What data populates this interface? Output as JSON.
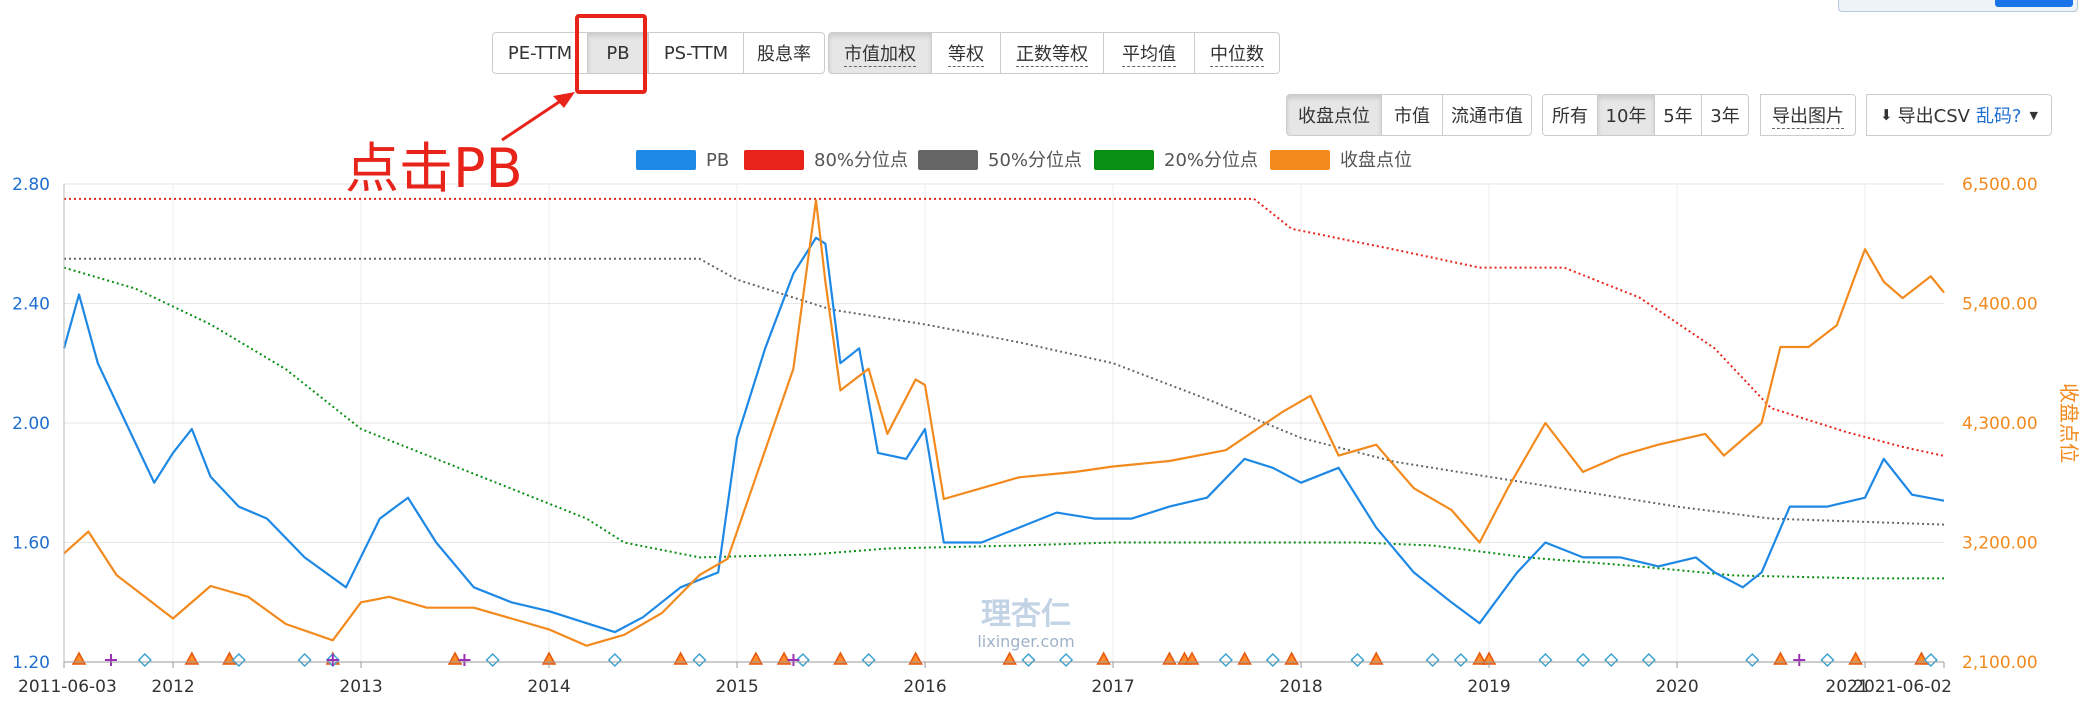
{
  "toolbar": {
    "metric_buttons": [
      {
        "label": "PE-TTM",
        "active": false
      },
      {
        "label": "PB",
        "active": true
      },
      {
        "label": "PS-TTM",
        "active": false
      },
      {
        "label": "股息率",
        "active": false
      }
    ],
    "weight_buttons": [
      {
        "label": "市值加权",
        "active": true
      },
      {
        "label": "等权",
        "active": false
      },
      {
        "label": "正数等权",
        "active": false
      },
      {
        "label": "平均值",
        "active": false
      },
      {
        "label": "中位数",
        "active": false
      }
    ],
    "overlay_buttons": [
      {
        "label": "收盘点位",
        "active": true
      },
      {
        "label": "市值",
        "active": false
      },
      {
        "label": "流通市值",
        "active": false
      }
    ],
    "range_buttons": [
      {
        "label": "所有",
        "active": false
      },
      {
        "label": "10年",
        "active": true
      },
      {
        "label": "5年",
        "active": false
      },
      {
        "label": "3年",
        "active": false
      }
    ],
    "export_image_label": "导出图片",
    "export_csv_label": "导出CSV",
    "garbled_link_label": "乱码?"
  },
  "annotation": {
    "text": "点击PB",
    "color": "#e8231a"
  },
  "watermark": {
    "line1": "理杏仁",
    "line2": "lixinger.com"
  },
  "chart_data": {
    "type": "line",
    "x_start": "2011-06-03",
    "x_end": "2021-06-02",
    "x_tick_labels": [
      "2011-06-03",
      "2012",
      "2013",
      "2014",
      "2015",
      "2016",
      "2017",
      "2018",
      "2019",
      "2020",
      "2021",
      "2021-06-02"
    ],
    "y_left": {
      "ticks": [
        "1.20",
        "1.60",
        "2.00",
        "2.40",
        "2.80"
      ],
      "range": [
        1.2,
        2.8
      ]
    },
    "y_right": {
      "ticks": [
        "2,100.00",
        "3,200.00",
        "4,300.00",
        "5,400.00",
        "6,500.00"
      ],
      "range": [
        2100,
        6500
      ],
      "label": "收盘点位"
    },
    "grid": true,
    "legend_position": "top",
    "series": [
      {
        "name": "PB",
        "axis": "left",
        "color": "#1e88e5",
        "style": "solid",
        "x": [
          2011.42,
          2011.5,
          2011.6,
          2011.75,
          2011.9,
          2012.0,
          2012.1,
          2012.2,
          2012.35,
          2012.5,
          2012.7,
          2012.92,
          2013.1,
          2013.25,
          2013.4,
          2013.6,
          2013.8,
          2014.0,
          2014.2,
          2014.35,
          2014.5,
          2014.7,
          2014.9,
          2015.0,
          2015.15,
          2015.3,
          2015.42,
          2015.47,
          2015.55,
          2015.65,
          2015.75,
          2015.9,
          2016.0,
          2016.1,
          2016.3,
          2016.5,
          2016.7,
          2016.9,
          2017.1,
          2017.3,
          2017.5,
          2017.7,
          2017.85,
          2018.0,
          2018.2,
          2018.4,
          2018.6,
          2018.8,
          2018.95,
          2019.15,
          2019.3,
          2019.5,
          2019.7,
          2019.9,
          2020.1,
          2020.2,
          2020.35,
          2020.45,
          2020.6,
          2020.8,
          2021.0,
          2021.1,
          2021.25,
          2021.42
        ],
        "y": [
          2.25,
          2.43,
          2.2,
          2.0,
          1.8,
          1.9,
          1.98,
          1.82,
          1.72,
          1.68,
          1.55,
          1.45,
          1.68,
          1.75,
          1.6,
          1.45,
          1.4,
          1.37,
          1.33,
          1.3,
          1.35,
          1.45,
          1.5,
          1.95,
          2.25,
          2.5,
          2.62,
          2.6,
          2.2,
          2.25,
          1.9,
          1.88,
          1.98,
          1.6,
          1.6,
          1.65,
          1.7,
          1.68,
          1.68,
          1.72,
          1.75,
          1.88,
          1.85,
          1.8,
          1.85,
          1.65,
          1.5,
          1.4,
          1.33,
          1.5,
          1.6,
          1.55,
          1.55,
          1.52,
          1.55,
          1.5,
          1.45,
          1.5,
          1.72,
          1.72,
          1.75,
          1.88,
          1.76,
          1.74
        ]
      },
      {
        "name": "80%分位点",
        "axis": "left",
        "color": "#e8231a",
        "style": "dotted",
        "x": [
          2011.42,
          2017.75,
          2017.95,
          2018.5,
          2018.95,
          2019.4,
          2019.8,
          2020.2,
          2020.5,
          2020.9,
          2021.2,
          2021.42
        ],
        "y": [
          2.75,
          2.75,
          2.65,
          2.58,
          2.52,
          2.52,
          2.42,
          2.25,
          2.05,
          1.97,
          1.92,
          1.89
        ]
      },
      {
        "name": "50%分位点",
        "axis": "left",
        "color": "#666666",
        "style": "dotted",
        "x": [
          2011.42,
          2014.8,
          2015.0,
          2015.5,
          2016.0,
          2016.5,
          2017.0,
          2017.5,
          2018.0,
          2018.5,
          2019.0,
          2019.5,
          2020.0,
          2020.5,
          2021.42
        ],
        "y": [
          2.55,
          2.55,
          2.48,
          2.38,
          2.33,
          2.27,
          2.2,
          2.08,
          1.95,
          1.87,
          1.82,
          1.77,
          1.72,
          1.68,
          1.66
        ]
      },
      {
        "name": "20%分位点",
        "axis": "left",
        "color": "#0a8f15",
        "style": "dotted",
        "x": [
          2011.42,
          2011.8,
          2012.2,
          2012.6,
          2013.0,
          2013.4,
          2013.8,
          2014.2,
          2014.4,
          2014.8,
          2015.4,
          2015.8,
          2016.5,
          2017.0,
          2018.3,
          2018.7,
          2019.2,
          2019.8,
          2020.3,
          2021.0,
          2021.42
        ],
        "y": [
          2.52,
          2.45,
          2.33,
          2.18,
          1.98,
          1.88,
          1.78,
          1.68,
          1.6,
          1.55,
          1.56,
          1.58,
          1.59,
          1.6,
          1.6,
          1.59,
          1.55,
          1.52,
          1.49,
          1.48,
          1.48
        ]
      },
      {
        "name": "收盘点位",
        "axis": "right",
        "color": "#f28a1e",
        "style": "solid",
        "x": [
          2011.42,
          2011.55,
          2011.7,
          2011.85,
          2012.0,
          2012.2,
          2012.4,
          2012.6,
          2012.85,
          2013.0,
          2013.15,
          2013.35,
          2013.6,
          2013.8,
          2014.0,
          2014.2,
          2014.4,
          2014.6,
          2014.8,
          2014.95,
          2015.1,
          2015.3,
          2015.42,
          2015.47,
          2015.55,
          2015.7,
          2015.8,
          2015.95,
          2016.0,
          2016.1,
          2016.3,
          2016.5,
          2016.8,
          2017.0,
          2017.3,
          2017.6,
          2017.9,
          2018.05,
          2018.2,
          2018.4,
          2018.6,
          2018.8,
          2018.95,
          2019.1,
          2019.3,
          2019.5,
          2019.7,
          2019.9,
          2020.15,
          2020.25,
          2020.45,
          2020.55,
          2020.7,
          2020.85,
          2021.0,
          2021.1,
          2021.2,
          2021.35,
          2021.42
        ],
        "y": [
          3100,
          3300,
          2900,
          2700,
          2500,
          2800,
          2700,
          2450,
          2300,
          2650,
          2700,
          2600,
          2600,
          2500,
          2400,
          2250,
          2350,
          2550,
          2900,
          3050,
          3800,
          4800,
          6350,
          5600,
          4600,
          4800,
          4200,
          4700,
          4650,
          3600,
          3700,
          3800,
          3850,
          3900,
          3950,
          4050,
          4400,
          4550,
          4000,
          4100,
          3700,
          3500,
          3200,
          3700,
          4300,
          3850,
          4000,
          4100,
          4200,
          4000,
          4300,
          5000,
          5000,
          5200,
          5900,
          5600,
          5450,
          5650,
          5500
        ]
      }
    ],
    "markers": [
      {
        "type": "triangle",
        "color": "#e8570e",
        "x": [
          2011.5,
          2012.1,
          2012.3,
          2012.85,
          2013.5,
          2014.0,
          2014.7,
          2015.1,
          2015.25,
          2015.55,
          2015.95,
          2016.45,
          2016.95,
          2017.3,
          2017.38,
          2017.42,
          2017.7,
          2017.95,
          2018.4,
          2018.95,
          2019.0,
          2020.55,
          2020.95,
          2021.3
        ]
      },
      {
        "type": "diamond",
        "color": "#3ba3d0",
        "x": [
          2011.85,
          2012.35,
          2012.7,
          2012.85,
          2013.7,
          2014.35,
          2014.8,
          2015.35,
          2015.7,
          2016.55,
          2016.75,
          2017.6,
          2017.85,
          2018.3,
          2018.7,
          2018.85,
          2019.3,
          2019.5,
          2019.65,
          2019.85,
          2020.4,
          2020.8,
          2021.35
        ]
      },
      {
        "type": "plus",
        "color": "#9b30b6",
        "x": [
          2011.67,
          2012.85,
          2013.55,
          2015.3,
          2020.65
        ]
      }
    ]
  }
}
